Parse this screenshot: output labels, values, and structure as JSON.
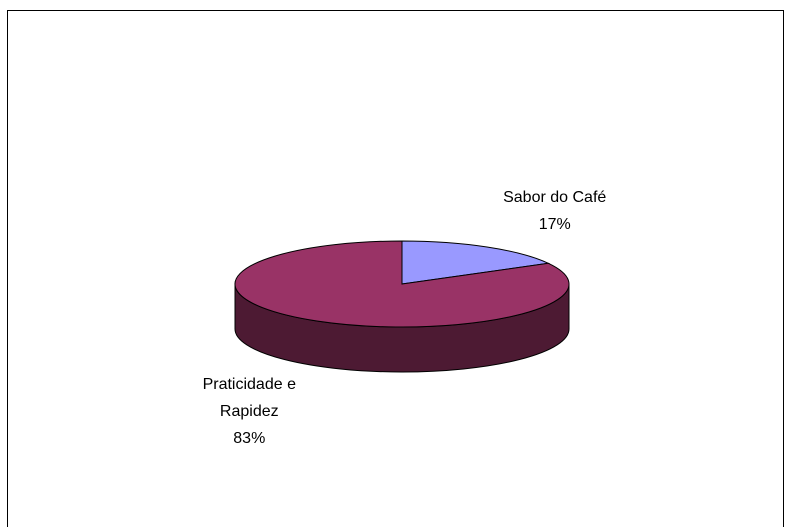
{
  "chart_data": {
    "type": "pie",
    "categories": [
      "Sabor do Café",
      "Praticidade e Rapidez"
    ],
    "values": [
      17,
      83
    ],
    "value_labels": [
      "17%",
      "83%"
    ],
    "colors": [
      "#9999ff",
      "#993366"
    ]
  }
}
